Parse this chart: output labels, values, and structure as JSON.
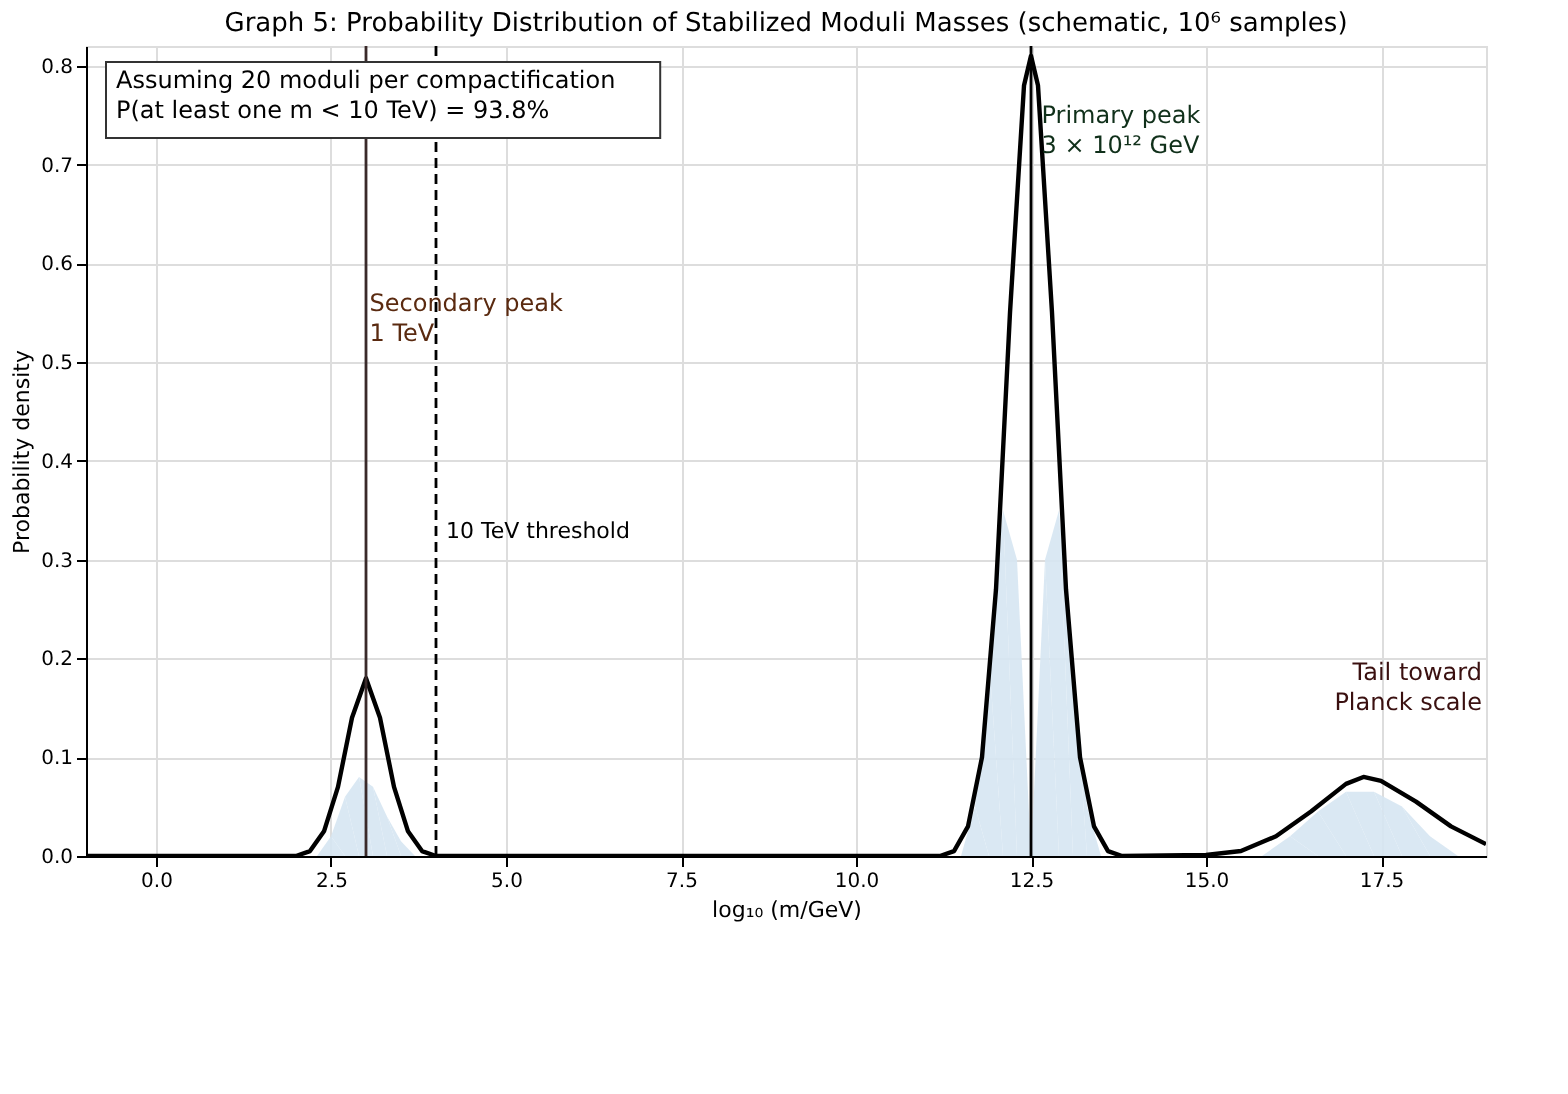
{
  "chart_data": {
    "type": "line",
    "title": "Graph 5: Probability Distribution of Stabilized Moduli Masses (schematic, 10⁶ samples)",
    "xlabel": "log₁₀ (m/GeV)",
    "ylabel": "Probability density",
    "series": [
      {
        "type": "area",
        "color": "#d6e6f2",
        "x": [
          2.3,
          2.5,
          2.7,
          2.9,
          3.1,
          3.3,
          3.5,
          3.7,
          11.5,
          11.7,
          11.9,
          12.1,
          12.3,
          12.5,
          12.7,
          12.9,
          13.1,
          13.3,
          13.5,
          15.8,
          16.2,
          16.6,
          17.0,
          17.4,
          17.8,
          18.2,
          18.6
        ],
        "values": [
          0.0,
          0.02,
          0.06,
          0.08,
          0.07,
          0.04,
          0.015,
          0.0,
          0.0,
          0.05,
          0.2,
          0.35,
          0.3,
          0.0,
          0.3,
          0.35,
          0.2,
          0.05,
          0.0,
          0.0,
          0.02,
          0.045,
          0.065,
          0.065,
          0.05,
          0.02,
          0.0
        ]
      },
      {
        "color": "#000000",
        "x": [
          -1,
          2.0,
          2.2,
          2.4,
          2.6,
          2.8,
          3.0,
          3.2,
          3.4,
          3.6,
          3.8,
          4.0,
          11.2,
          11.4,
          11.6,
          11.8,
          12.0,
          12.2,
          12.4,
          12.5,
          12.6,
          12.8,
          13.0,
          13.2,
          13.4,
          13.6,
          13.8,
          15.0,
          15.5,
          16.0,
          16.5,
          17.0,
          17.25,
          17.5,
          18.0,
          18.5,
          19.0
        ],
        "values": [
          0.0,
          0.0,
          0.005,
          0.025,
          0.07,
          0.14,
          0.18,
          0.14,
          0.07,
          0.025,
          0.005,
          0.0,
          0.0,
          0.005,
          0.03,
          0.1,
          0.27,
          0.55,
          0.78,
          0.81,
          0.78,
          0.55,
          0.27,
          0.1,
          0.03,
          0.005,
          0.0,
          0.001,
          0.005,
          0.02,
          0.045,
          0.073,
          0.08,
          0.076,
          0.055,
          0.03,
          0.012
        ]
      }
    ],
    "xlim": [
      -1,
      19
    ],
    "ylim": [
      0,
      0.82
    ],
    "xticks": [
      {
        "value": 0,
        "label": "0.0"
      },
      2.5,
      {
        "value": 5,
        "label": "5.0"
      },
      7.5,
      {
        "value": 10,
        "label": "10.0"
      },
      12.5,
      {
        "value": 15,
        "label": "15.0"
      },
      17.5
    ],
    "yticks": [
      {
        "value": 0,
        "label": "0.0"
      },
      0.1,
      0.2,
      0.3,
      0.4,
      0.5,
      0.6,
      0.7,
      0.8
    ],
    "ref_lines": [
      {
        "axis": "x",
        "value": 3,
        "color": "#3a2a2a",
        "line_style": "solid"
      },
      {
        "axis": "x",
        "value": 4,
        "label": "10 TeV threshold",
        "color": "#000000",
        "line_style": "dashed"
      },
      {
        "axis": "x",
        "value": 12.5,
        "color": "#000000",
        "line_style": "solid"
      }
    ],
    "annotations": [
      "Assuming 20 moduli per compactification\nP(at least one m < 10 TeV) = 93.8%",
      {
        "text": "Secondary peak\n1 TeV",
        "x": 3.05,
        "y": 0.57
      },
      {
        "text": "Primary peak\n3 × 10¹² GeV",
        "x": 12.65,
        "y": 0.76
      },
      "Tail toward\nPlanck scale"
    ],
    "grid": true,
    "marker": "none",
    "line_style": "solid"
  }
}
